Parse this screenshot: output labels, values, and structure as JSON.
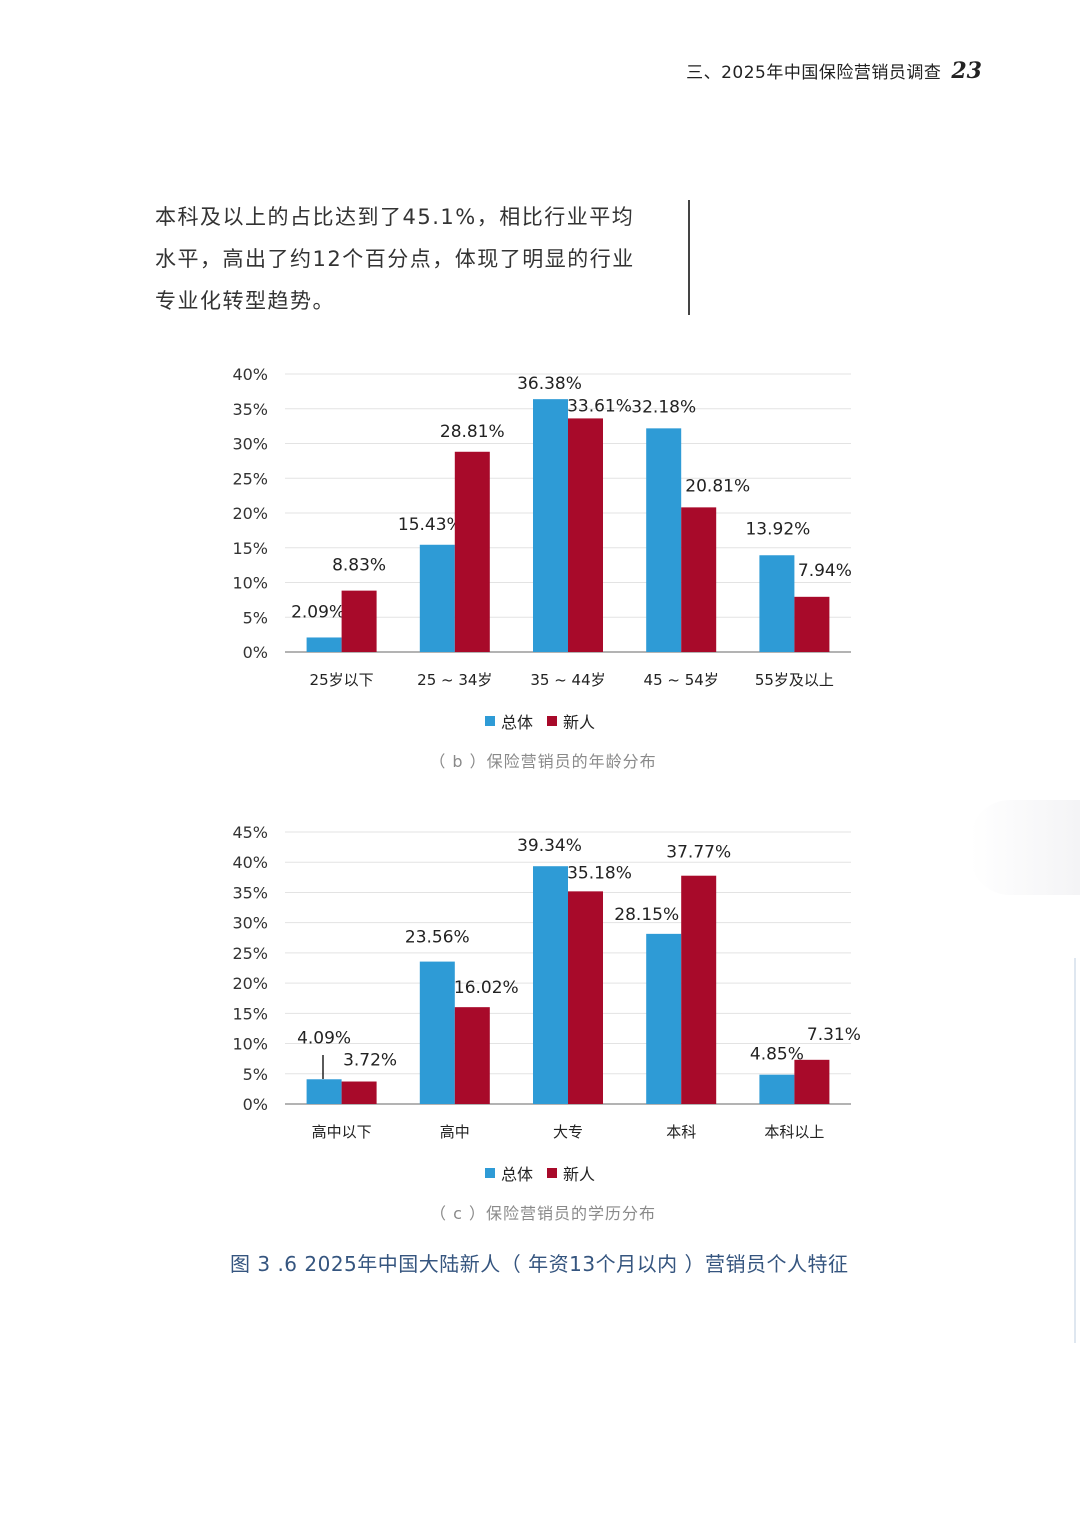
{
  "header": {
    "title": "三、2025年中国保险营销员调查",
    "page_number": "23"
  },
  "paragraph": {
    "lines": [
      "本科及以上的占比达到了45.1%，相比行业平均",
      "水平，高出了约12个百分点，体现了明显的行业",
      "专业化转型趋势。"
    ]
  },
  "colors": {
    "overall": "#2e9bd6",
    "newcomer": "#a80a2a",
    "grid": "#e3e3e3",
    "axis": "#9a9a9a",
    "caption": "#8a8a8a",
    "figure_title": "#35557f"
  },
  "legend": {
    "overall": "总体",
    "newcomer": "新人"
  },
  "chart_data": [
    {
      "type": "bar",
      "categories": [
        "25岁以下",
        "25 ~ 34岁",
        "35 ~ 44岁",
        "45 ~ 54岁",
        "55岁及以上"
      ],
      "series": [
        {
          "name": "总体",
          "values": [
            2.09,
            15.43,
            36.38,
            32.18,
            13.92
          ]
        },
        {
          "name": "新人",
          "values": [
            8.83,
            28.81,
            33.61,
            20.81,
            7.94
          ]
        }
      ],
      "ylim": [
        0,
        40
      ],
      "yticks": [
        "0%",
        "5%",
        "10%",
        "15%",
        "20%",
        "25%",
        "30%",
        "35%",
        "40%"
      ],
      "labels": [
        [
          "2.09%",
          "15.43%",
          "36.38%",
          "32.18%",
          "13.92%"
        ],
        [
          "8.83%",
          "28.81%",
          "33.61%",
          "20.81%",
          "7.94%"
        ]
      ],
      "caption": "（ b ）保险营销员的年龄分布",
      "grid": true,
      "legend_position": "bottom"
    },
    {
      "type": "bar",
      "categories": [
        "高中以下",
        "高中",
        "大专",
        "本科",
        "本科以上"
      ],
      "series": [
        {
          "name": "总体",
          "values": [
            4.09,
            23.56,
            39.34,
            28.15,
            4.85
          ]
        },
        {
          "name": "新人",
          "values": [
            3.72,
            16.02,
            35.18,
            37.77,
            7.31
          ]
        }
      ],
      "ylim": [
        0,
        45
      ],
      "yticks": [
        "0%",
        "5%",
        "10%",
        "15%",
        "20%",
        "25%",
        "30%",
        "35%",
        "40%",
        "45%"
      ],
      "labels": [
        [
          "4.09%",
          "23.56%",
          "39.34%",
          "28.15%",
          "4.85%"
        ],
        [
          "3.72%",
          "16.02%",
          "35.18%",
          "37.77%",
          "7.31%"
        ]
      ],
      "caption": "（ c ）保险营销员的学历分布",
      "grid": true,
      "legend_position": "bottom"
    }
  ],
  "figure_title": "图 3 .6  2025年中国大陆新人（ 年资13个月以内 ）营销员个人特征"
}
